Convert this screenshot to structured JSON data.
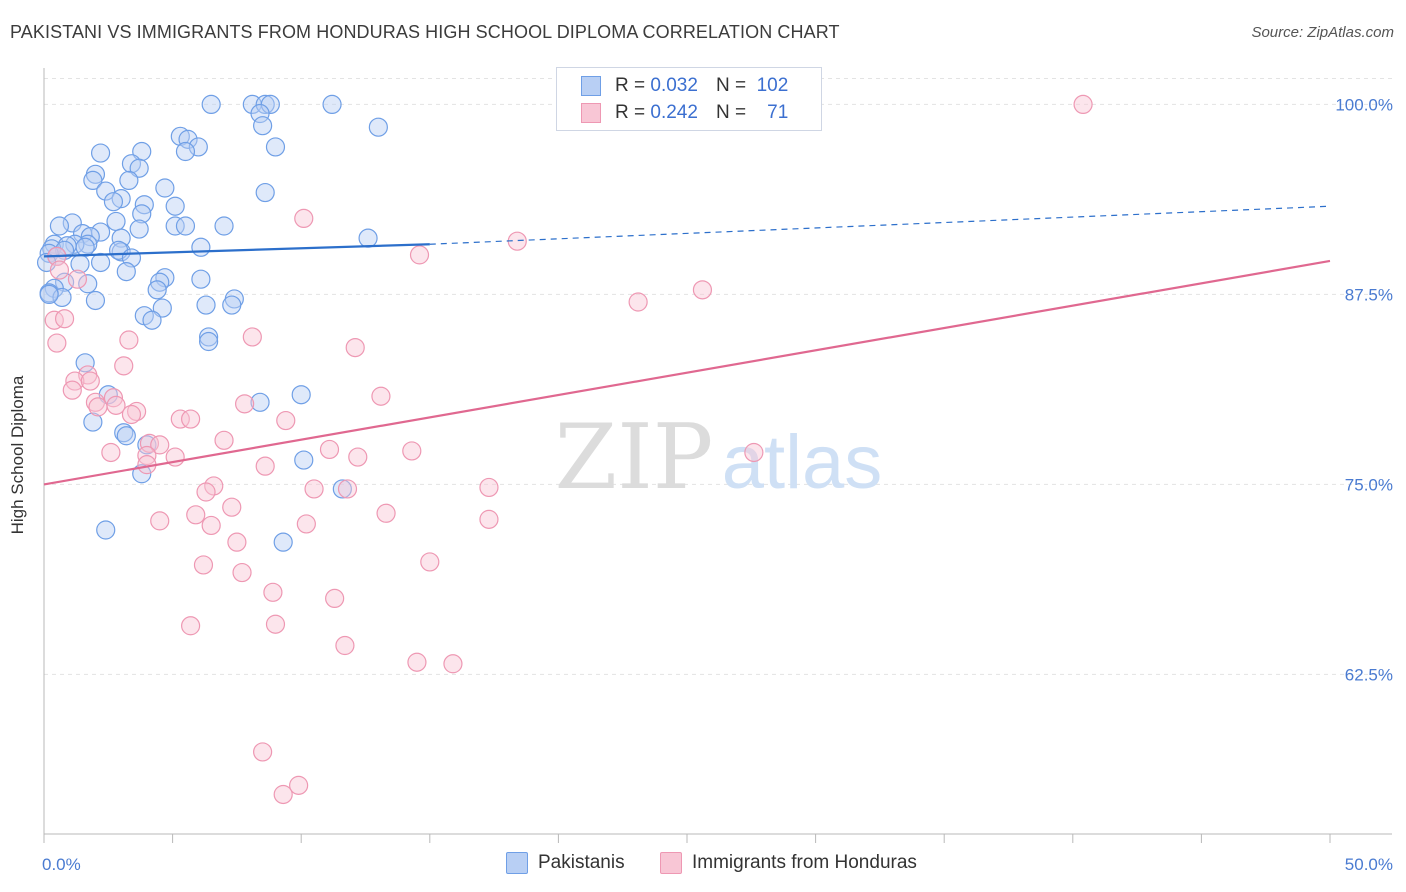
{
  "title": "PAKISTANI VS IMMIGRANTS FROM HONDURAS HIGH SCHOOL DIPLOMA CORRELATION CHART",
  "source": "Source: ZipAtlas.com",
  "watermark": {
    "zip": "ZIP",
    "atlas": "atlas"
  },
  "legend_top": [
    {
      "r_label": "R = ",
      "r_value": "0.032",
      "n_label": "N = ",
      "n_value": "102"
    },
    {
      "r_label": "R = ",
      "r_value": "0.242",
      "n_label": "N = ",
      "n_value": "71"
    }
  ],
  "chart_data": {
    "type": "scatter",
    "ylabel": "High School Diploma",
    "xlim": [
      0,
      50
    ],
    "ylim": [
      52,
      102
    ],
    "x_tick_labels": [
      "0.0%",
      "50.0%"
    ],
    "y_ticks": [
      62.5,
      75.0,
      87.5,
      100.0
    ],
    "y_tick_labels": [
      "62.5%",
      "75.0%",
      "87.5%",
      "100.0%"
    ],
    "grid": true,
    "legend_position": "bottom",
    "series": [
      {
        "name": "Pakistanis",
        "color": "#6f9fe6",
        "fill": "#b8cff4",
        "line_color": "#2c6fcb",
        "trend": {
          "x0": 0,
          "y0": 90.0,
          "x1": 15,
          "y1": 90.8,
          "dash_to_x": 50,
          "dash_to_y": 93.3
        },
        "points": [
          [
            6.5,
            100
          ],
          [
            8.1,
            100
          ],
          [
            8.6,
            100
          ],
          [
            11.2,
            100
          ],
          [
            8.8,
            100
          ],
          [
            8.4,
            99.4
          ],
          [
            13,
            98.5
          ],
          [
            8.5,
            98.6
          ],
          [
            5.3,
            97.9
          ],
          [
            5.6,
            97.7
          ],
          [
            6,
            97.2
          ],
          [
            9,
            97.2
          ],
          [
            5.5,
            96.9
          ],
          [
            3.8,
            96.9
          ],
          [
            2.2,
            96.8
          ],
          [
            3.4,
            96.1
          ],
          [
            3.7,
            95.8
          ],
          [
            2,
            95.4
          ],
          [
            3.3,
            95
          ],
          [
            1.9,
            95
          ],
          [
            4.7,
            94.5
          ],
          [
            2.4,
            94.3
          ],
          [
            8.6,
            94.2
          ],
          [
            3,
            93.8
          ],
          [
            2.7,
            93.6
          ],
          [
            3.9,
            93.4
          ],
          [
            5.1,
            93.3
          ],
          [
            3.8,
            92.8
          ],
          [
            2.8,
            92.3
          ],
          [
            1.1,
            92.2
          ],
          [
            0.6,
            92
          ],
          [
            5.1,
            92
          ],
          [
            7,
            92
          ],
          [
            5.5,
            92
          ],
          [
            3.7,
            91.8
          ],
          [
            2.2,
            91.6
          ],
          [
            1.5,
            91.5
          ],
          [
            1.8,
            91.3
          ],
          [
            3,
            91.2
          ],
          [
            12.6,
            91.2
          ],
          [
            1.7,
            90.8
          ],
          [
            1.2,
            90.8
          ],
          [
            0.4,
            90.8
          ],
          [
            0.9,
            90.7
          ],
          [
            1.6,
            90.6
          ],
          [
            0.3,
            90.5
          ],
          [
            0.8,
            90.4
          ],
          [
            3,
            90.3
          ],
          [
            6.1,
            90.6
          ],
          [
            2.9,
            90.4
          ],
          [
            0.2,
            90.2
          ],
          [
            0.5,
            90
          ],
          [
            3.4,
            89.9
          ],
          [
            1.4,
            89.5
          ],
          [
            2.2,
            89.6
          ],
          [
            0.1,
            89.6
          ],
          [
            3.2,
            89
          ],
          [
            4.7,
            88.6
          ],
          [
            6.1,
            88.5
          ],
          [
            4.5,
            88.3
          ],
          [
            0.8,
            88.3
          ],
          [
            1.7,
            88.2
          ],
          [
            0.4,
            87.9
          ],
          [
            0.2,
            87.6
          ],
          [
            4.4,
            87.8
          ],
          [
            0.7,
            87.3
          ],
          [
            0.2,
            87.5
          ],
          [
            7.4,
            87.2
          ],
          [
            2,
            87.1
          ],
          [
            6.3,
            86.8
          ],
          [
            4.6,
            86.6
          ],
          [
            7.3,
            86.8
          ],
          [
            3.9,
            86.1
          ],
          [
            4.2,
            85.8
          ],
          [
            6.4,
            84.7
          ],
          [
            6.4,
            84.4
          ],
          [
            1.6,
            83
          ],
          [
            8.4,
            80.4
          ],
          [
            10,
            80.9
          ],
          [
            2.5,
            80.9
          ],
          [
            1.9,
            79.1
          ],
          [
            3.1,
            78.4
          ],
          [
            3.2,
            78.2
          ],
          [
            4,
            77.6
          ],
          [
            10.1,
            76.6
          ],
          [
            3.8,
            75.7
          ],
          [
            11.6,
            74.7
          ],
          [
            2.4,
            72
          ],
          [
            9.3,
            71.2
          ]
        ]
      },
      {
        "name": "Immigrants from Honduras",
        "color": "#ee98b3",
        "fill": "#f8c6d5",
        "line_color": "#e06890",
        "trend": {
          "x0": 0,
          "y0": 75.0,
          "x1": 50,
          "y1": 89.7
        },
        "points": [
          [
            40.4,
            100
          ],
          [
            10.1,
            92.5
          ],
          [
            18.4,
            91.0
          ],
          [
            14.6,
            90.1
          ],
          [
            0.5,
            90.0
          ],
          [
            0.6,
            89.1
          ],
          [
            1.3,
            88.5
          ],
          [
            25.6,
            87.8
          ],
          [
            23.1,
            87.0
          ],
          [
            0.4,
            85.8
          ],
          [
            0.8,
            85.9
          ],
          [
            0.5,
            84.3
          ],
          [
            8.1,
            84.7
          ],
          [
            3.3,
            84.5
          ],
          [
            12.1,
            84.0
          ],
          [
            3.1,
            82.8
          ],
          [
            1.7,
            82.2
          ],
          [
            1.2,
            81.8
          ],
          [
            1.8,
            81.8
          ],
          [
            1.1,
            81.2
          ],
          [
            13.1,
            80.8
          ],
          [
            2.7,
            80.7
          ],
          [
            7.8,
            80.3
          ],
          [
            2,
            80.4
          ],
          [
            2.1,
            80.1
          ],
          [
            2.8,
            80.2
          ],
          [
            3.6,
            79.8
          ],
          [
            3.4,
            79.6
          ],
          [
            5.3,
            79.3
          ],
          [
            9.4,
            79.2
          ],
          [
            5.7,
            79.3
          ],
          [
            4.1,
            77.7
          ],
          [
            4.5,
            77.6
          ],
          [
            7,
            77.9
          ],
          [
            11.1,
            77.3
          ],
          [
            14.3,
            77.2
          ],
          [
            27.6,
            77.1
          ],
          [
            2.6,
            77.1
          ],
          [
            12.2,
            76.8
          ],
          [
            4,
            76.9
          ],
          [
            5.1,
            76.8
          ],
          [
            8.6,
            76.2
          ],
          [
            4,
            76.3
          ],
          [
            6.6,
            74.9
          ],
          [
            11.8,
            74.7
          ],
          [
            6.3,
            74.5
          ],
          [
            10.5,
            74.7
          ],
          [
            17.3,
            74.8
          ],
          [
            7.3,
            73.5
          ],
          [
            13.3,
            73.1
          ],
          [
            5.9,
            73
          ],
          [
            4.5,
            72.6
          ],
          [
            10.2,
            72.4
          ],
          [
            17.3,
            72.7
          ],
          [
            6.5,
            72.3
          ],
          [
            7.5,
            71.2
          ],
          [
            15,
            69.9
          ],
          [
            6.2,
            69.7
          ],
          [
            7.7,
            69.2
          ],
          [
            8.9,
            67.9
          ],
          [
            11.3,
            67.5
          ],
          [
            5.7,
            65.7
          ],
          [
            9,
            65.8
          ],
          [
            11.7,
            64.4
          ],
          [
            14.5,
            63.3
          ],
          [
            15.9,
            63.2
          ],
          [
            8.5,
            57.4
          ],
          [
            9.9,
            55.2
          ],
          [
            9.3,
            54.6
          ]
        ]
      }
    ]
  }
}
